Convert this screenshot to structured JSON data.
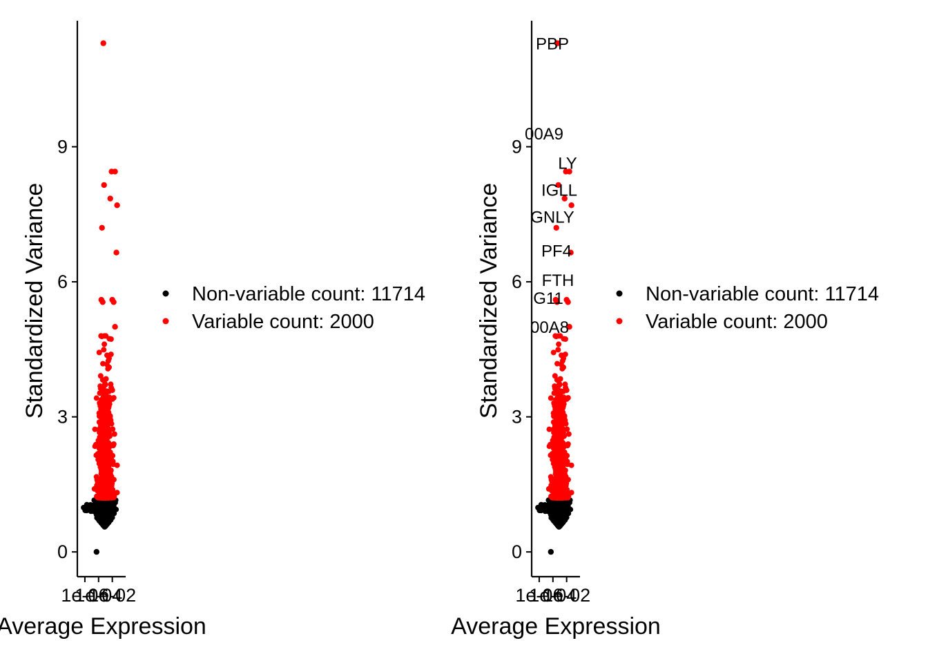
{
  "chart_data": [
    {
      "type": "scatter",
      "panel": "left",
      "xlabel": "Average Expression",
      "ylabel": "Standardized Variance",
      "x_scale": "log10",
      "x_ticks": [
        "1e-06",
        "1e-04",
        "1e-02"
      ],
      "y_ticks": [
        "0",
        "3",
        "6",
        "9"
      ],
      "ylim": [
        -0.55,
        11.8
      ],
      "xlim_log10": [
        -7.1,
        -0.05
      ],
      "legend_position": "right",
      "legend": [
        {
          "label": "Non-variable count: 11714",
          "color": "#000000"
        },
        {
          "label": "Variable count: 2000",
          "color": "#ff0000"
        }
      ],
      "series": [
        {
          "name": "Non-variable count: 11714",
          "color": "#000000",
          "count": 11714
        },
        {
          "name": "Variable count: 2000",
          "color": "#ff0000",
          "count": 2000
        }
      ],
      "highlight_points": [
        {
          "x_log10": -3.3,
          "y": 11.3
        },
        {
          "x_log10": -2.1,
          "y": 8.45
        },
        {
          "x_log10": -1.6,
          "y": 8.45
        },
        {
          "x_log10": -3.2,
          "y": 8.15
        },
        {
          "x_log10": -2.3,
          "y": 7.85
        },
        {
          "x_log10": -1.3,
          "y": 7.7
        },
        {
          "x_log10": -3.5,
          "y": 7.2
        },
        {
          "x_log10": -1.4,
          "y": 6.65
        },
        {
          "x_log10": -3.6,
          "y": 5.6
        },
        {
          "x_log10": -3.4,
          "y": 5.55
        },
        {
          "x_log10": -2.0,
          "y": 5.6
        },
        {
          "x_log10": -1.8,
          "y": 5.55
        },
        {
          "x_log10": -1.6,
          "y": 5.0
        },
        {
          "x_log10": -4.3,
          "y": 0.0
        }
      ]
    },
    {
      "type": "scatter",
      "panel": "right",
      "xlabel": "Average Expression",
      "ylabel": "Standardized Variance",
      "x_scale": "log10",
      "x_ticks": [
        "1e-06",
        "1e-04",
        "1e-02"
      ],
      "y_ticks": [
        "0",
        "3",
        "6",
        "9"
      ],
      "ylim": [
        -0.55,
        11.8
      ],
      "xlim_log10": [
        -7.1,
        -0.05
      ],
      "legend_position": "right",
      "legend": [
        {
          "label": "Non-variable count: 11714",
          "color": "#000000"
        },
        {
          "label": "Variable count: 2000",
          "color": "#ff0000"
        }
      ],
      "series": [
        {
          "name": "Non-variable count: 11714",
          "color": "#000000",
          "count": 11714
        },
        {
          "name": "Variable count: 2000",
          "color": "#ff0000",
          "count": 2000
        }
      ],
      "annotations": [
        {
          "text": "PBP",
          "y": 11.3
        },
        {
          "text": "00A9",
          "y": 9.3
        },
        {
          "text": "LY",
          "y": 8.65
        },
        {
          "text": "IGLL",
          "y": 8.05
        },
        {
          "text": "GNLY",
          "y": 7.45
        },
        {
          "text": "PF4",
          "y": 6.7
        },
        {
          "text": "FTH",
          "y": 6.05
        },
        {
          "text": "G11",
          "y": 5.65
        },
        {
          "text": "00A8",
          "y": 5.0
        }
      ]
    }
  ]
}
